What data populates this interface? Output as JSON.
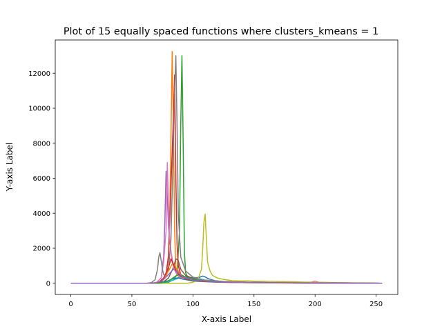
{
  "chart_data": {
    "type": "line",
    "title": "Plot of 15 equally spaced functions where clusters_kmeans = 1",
    "xlabel": "X-axis Label",
    "ylabel": "Y-axis Label",
    "xlim": [
      -12.75,
      267.75
    ],
    "ylim": [
      -640,
      13900
    ],
    "xticks": [
      0,
      50,
      100,
      150,
      200,
      250
    ],
    "yticks": [
      0,
      2000,
      4000,
      6000,
      8000,
      10000,
      12000
    ],
    "xtick_labels": [
      "0",
      "50",
      "100",
      "150",
      "200",
      "250"
    ],
    "ytick_labels": [
      "0",
      "2000",
      "4000",
      "6000",
      "8000",
      "10000",
      "12000"
    ],
    "grid": false,
    "legend": "none",
    "series": [
      {
        "color": "#1f77b4",
        "values": [
          [
            0,
            0
          ],
          [
            65,
            0
          ],
          [
            75,
            20
          ],
          [
            80,
            80
          ],
          [
            85,
            220
          ],
          [
            90,
            340
          ],
          [
            95,
            380
          ],
          [
            100,
            300
          ],
          [
            105,
            330
          ],
          [
            108,
            410
          ],
          [
            110,
            360
          ],
          [
            113,
            250
          ],
          [
            118,
            150
          ],
          [
            125,
            90
          ],
          [
            140,
            40
          ],
          [
            170,
            20
          ],
          [
            200,
            10
          ],
          [
            255,
            0
          ]
        ]
      },
      {
        "color": "#ff7f0e",
        "values": [
          [
            0,
            0
          ],
          [
            68,
            0
          ],
          [
            74,
            60
          ],
          [
            78,
            400
          ],
          [
            80,
            1500
          ],
          [
            81,
            4000
          ],
          [
            82,
            8300
          ],
          [
            83,
            13250
          ],
          [
            84,
            9000
          ],
          [
            85,
            3000
          ],
          [
            86,
            900
          ],
          [
            88,
            400
          ],
          [
            92,
            250
          ],
          [
            100,
            120
          ],
          [
            120,
            60
          ],
          [
            160,
            20
          ],
          [
            200,
            10
          ],
          [
            255,
            0
          ]
        ]
      },
      {
        "color": "#2ca02c",
        "values": [
          [
            0,
            0
          ],
          [
            75,
            0
          ],
          [
            80,
            60
          ],
          [
            84,
            200
          ],
          [
            87,
            500
          ],
          [
            89,
            3000
          ],
          [
            90,
            9000
          ],
          [
            91,
            13000
          ],
          [
            92,
            8000
          ],
          [
            93,
            1800
          ],
          [
            94,
            600
          ],
          [
            96,
            300
          ],
          [
            100,
            200
          ],
          [
            105,
            150
          ],
          [
            115,
            80
          ],
          [
            140,
            40
          ],
          [
            180,
            20
          ],
          [
            255,
            0
          ]
        ]
      },
      {
        "color": "#d62728",
        "values": [
          [
            0,
            0
          ],
          [
            66,
            0
          ],
          [
            74,
            80
          ],
          [
            78,
            500
          ],
          [
            80,
            1600
          ],
          [
            82,
            5500
          ],
          [
            84,
            9500
          ],
          [
            85,
            11900
          ],
          [
            86,
            6000
          ],
          [
            87,
            2200
          ],
          [
            88,
            1000
          ],
          [
            90,
            500
          ],
          [
            95,
            250
          ],
          [
            105,
            130
          ],
          [
            130,
            60
          ],
          [
            170,
            20
          ],
          [
            255,
            0
          ]
        ]
      },
      {
        "color": "#9467bd",
        "values": [
          [
            0,
            0
          ],
          [
            65,
            0
          ],
          [
            70,
            40
          ],
          [
            74,
            300
          ],
          [
            76,
            1500
          ],
          [
            77,
            3500
          ],
          [
            78,
            6400
          ],
          [
            79,
            5000
          ],
          [
            80,
            3200
          ],
          [
            82,
            1800
          ],
          [
            84,
            1000
          ],
          [
            88,
            500
          ],
          [
            94,
            250
          ],
          [
            105,
            120
          ],
          [
            130,
            50
          ],
          [
            180,
            20
          ],
          [
            255,
            0
          ]
        ]
      },
      {
        "color": "#8c564b",
        "values": [
          [
            0,
            0
          ],
          [
            70,
            0
          ],
          [
            76,
            80
          ],
          [
            80,
            300
          ],
          [
            84,
            900
          ],
          [
            86,
            1400
          ],
          [
            88,
            1300
          ],
          [
            90,
            800
          ],
          [
            94,
            450
          ],
          [
            100,
            280
          ],
          [
            110,
            180
          ],
          [
            125,
            100
          ],
          [
            150,
            50
          ],
          [
            200,
            20
          ],
          [
            255,
            0
          ]
        ]
      },
      {
        "color": "#e377c2",
        "values": [
          [
            0,
            0
          ],
          [
            64,
            0
          ],
          [
            70,
            40
          ],
          [
            74,
            300
          ],
          [
            76,
            1200
          ],
          [
            78,
            3000
          ],
          [
            79,
            6900
          ],
          [
            80,
            4500
          ],
          [
            81,
            2500
          ],
          [
            83,
            1200
          ],
          [
            86,
            600
          ],
          [
            90,
            350
          ],
          [
            100,
            180
          ],
          [
            130,
            70
          ],
          [
            180,
            30
          ],
          [
            197,
            70
          ],
          [
            200,
            120
          ],
          [
            203,
            60
          ],
          [
            230,
            20
          ],
          [
            255,
            0
          ]
        ]
      },
      {
        "color": "#7f7f7f",
        "values": [
          [
            0,
            0
          ],
          [
            62,
            0
          ],
          [
            66,
            40
          ],
          [
            69,
            200
          ],
          [
            71,
            800
          ],
          [
            72,
            1500
          ],
          [
            73,
            1750
          ],
          [
            74,
            1300
          ],
          [
            75,
            800
          ],
          [
            76,
            500
          ],
          [
            78,
            400
          ],
          [
            80,
            800
          ],
          [
            82,
            2500
          ],
          [
            84,
            8000
          ],
          [
            85,
            11000
          ],
          [
            86,
            13000
          ],
          [
            87,
            9000
          ],
          [
            88,
            4000
          ],
          [
            90,
            1500
          ],
          [
            94,
            700
          ],
          [
            100,
            350
          ],
          [
            110,
            180
          ],
          [
            130,
            80
          ],
          [
            170,
            30
          ],
          [
            255,
            0
          ]
        ]
      },
      {
        "color": "#bcbd22",
        "values": [
          [
            0,
            0
          ],
          [
            95,
            0
          ],
          [
            100,
            50
          ],
          [
            104,
            200
          ],
          [
            107,
            800
          ],
          [
            108,
            2000
          ],
          [
            109,
            3500
          ],
          [
            110,
            3950
          ],
          [
            111,
            2500
          ],
          [
            112,
            1200
          ],
          [
            114,
            700
          ],
          [
            116,
            450
          ],
          [
            120,
            300
          ],
          [
            125,
            220
          ],
          [
            132,
            150
          ],
          [
            140,
            130
          ],
          [
            145,
            140
          ],
          [
            150,
            120
          ],
          [
            160,
            110
          ],
          [
            170,
            100
          ],
          [
            180,
            90
          ],
          [
            190,
            70
          ],
          [
            200,
            50
          ],
          [
            220,
            30
          ],
          [
            240,
            15
          ],
          [
            255,
            0
          ]
        ]
      },
      {
        "color": "#17becf",
        "values": [
          [
            0,
            0
          ],
          [
            70,
            0
          ],
          [
            78,
            50
          ],
          [
            84,
            180
          ],
          [
            88,
            320
          ],
          [
            92,
            380
          ],
          [
            96,
            300
          ],
          [
            102,
            220
          ],
          [
            110,
            160
          ],
          [
            120,
            110
          ],
          [
            140,
            60
          ],
          [
            180,
            20
          ],
          [
            255,
            0
          ]
        ]
      },
      {
        "color": "#1f77b4",
        "values": [
          [
            0,
            0
          ],
          [
            68,
            0
          ],
          [
            74,
            30
          ],
          [
            80,
            150
          ],
          [
            84,
            280
          ],
          [
            88,
            300
          ],
          [
            92,
            230
          ],
          [
            100,
            140
          ],
          [
            115,
            80
          ],
          [
            140,
            40
          ],
          [
            200,
            10
          ],
          [
            255,
            0
          ]
        ]
      },
      {
        "color": "#ff7f0e",
        "values": [
          [
            0,
            0
          ],
          [
            66,
            0
          ],
          [
            72,
            60
          ],
          [
            76,
            250
          ],
          [
            80,
            700
          ],
          [
            83,
            1100
          ],
          [
            86,
            900
          ],
          [
            90,
            500
          ],
          [
            96,
            280
          ],
          [
            105,
            170
          ],
          [
            120,
            100
          ],
          [
            150,
            50
          ],
          [
            200,
            20
          ],
          [
            255,
            0
          ]
        ]
      },
      {
        "color": "#2ca02c",
        "values": [
          [
            0,
            0
          ],
          [
            72,
            0
          ],
          [
            78,
            80
          ],
          [
            82,
            220
          ],
          [
            86,
            420
          ],
          [
            89,
            500
          ],
          [
            92,
            420
          ],
          [
            96,
            300
          ],
          [
            102,
            200
          ],
          [
            112,
            120
          ],
          [
            130,
            70
          ],
          [
            170,
            30
          ],
          [
            255,
            0
          ]
        ]
      },
      {
        "color": "#d62728",
        "values": [
          [
            0,
            0
          ],
          [
            66,
            0
          ],
          [
            72,
            50
          ],
          [
            76,
            300
          ],
          [
            80,
            900
          ],
          [
            82,
            1400
          ],
          [
            84,
            1100
          ],
          [
            86,
            700
          ],
          [
            90,
            400
          ],
          [
            96,
            220
          ],
          [
            108,
            120
          ],
          [
            130,
            60
          ],
          [
            180,
            20
          ],
          [
            255,
            0
          ]
        ]
      },
      {
        "color": "#9467bd",
        "values": [
          [
            0,
            0
          ],
          [
            64,
            0
          ],
          [
            70,
            30
          ],
          [
            75,
            150
          ],
          [
            80,
            500
          ],
          [
            84,
            800
          ],
          [
            88,
            600
          ],
          [
            92,
            350
          ],
          [
            100,
            180
          ],
          [
            115,
            100
          ],
          [
            140,
            50
          ],
          [
            190,
            20
          ],
          [
            255,
            0
          ]
        ]
      }
    ]
  }
}
